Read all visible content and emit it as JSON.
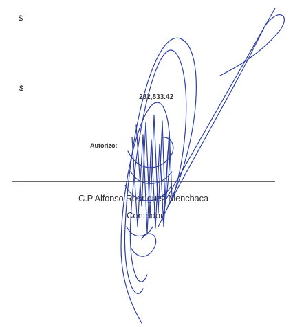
{
  "summary": {
    "currency_1": "$",
    "currency_2": "$",
    "amount": "282,833.42"
  },
  "approval": {
    "label": "Autorizo:",
    "signer_name": "C.P Alfonso Rodríguez Menchaca",
    "signer_role": "Contador"
  },
  "colors": {
    "ink": "#2d3fa6",
    "rule": "#6a6a6a"
  }
}
